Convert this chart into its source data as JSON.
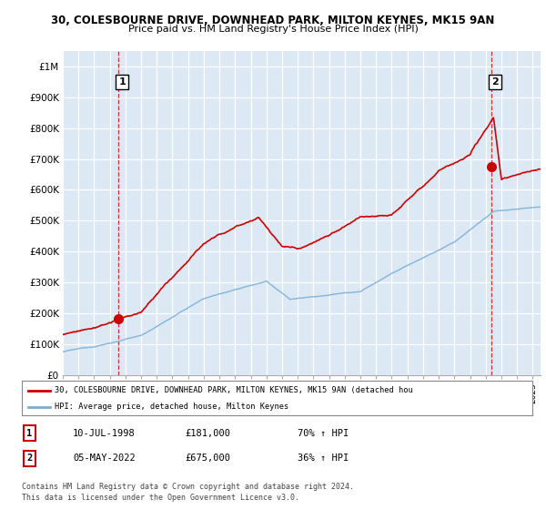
{
  "title_line1": "30, COLESBOURNE DRIVE, DOWNHEAD PARK, MILTON KEYNES, MK15 9AN",
  "title_line2": "Price paid vs. HM Land Registry's House Price Index (HPI)",
  "ylabel_ticks": [
    "£0",
    "£100K",
    "£200K",
    "£300K",
    "£400K",
    "£500K",
    "£600K",
    "£700K",
    "£800K",
    "£900K",
    "£1M"
  ],
  "ytick_values": [
    0,
    100000,
    200000,
    300000,
    400000,
    500000,
    600000,
    700000,
    800000,
    900000,
    1000000
  ],
  "ylim": [
    0,
    1050000
  ],
  "xlim_start": 1995.0,
  "xlim_end": 2025.5,
  "sale1_x": 1998.53,
  "sale1_y": 181000,
  "sale2_x": 2022.35,
  "sale2_y": 675000,
  "legend_line1": "30, COLESBOURNE DRIVE, DOWNHEAD PARK, MILTON KEYNES, MK15 9AN (detached hou",
  "legend_line2": "HPI: Average price, detached house, Milton Keynes",
  "table_row1": [
    "1",
    "10-JUL-1998",
    "£181,000",
    "70% ↑ HPI"
  ],
  "table_row2": [
    "2",
    "05-MAY-2022",
    "£675,000",
    "36% ↑ HPI"
  ],
  "footer1": "Contains HM Land Registry data © Crown copyright and database right 2024.",
  "footer2": "This data is licensed under the Open Government Licence v3.0.",
  "red_color": "#cc0000",
  "blue_color": "#7aaed6",
  "chart_bg": "#dce9f5",
  "grid_color": "#ffffff",
  "fig_bg": "#ffffff"
}
